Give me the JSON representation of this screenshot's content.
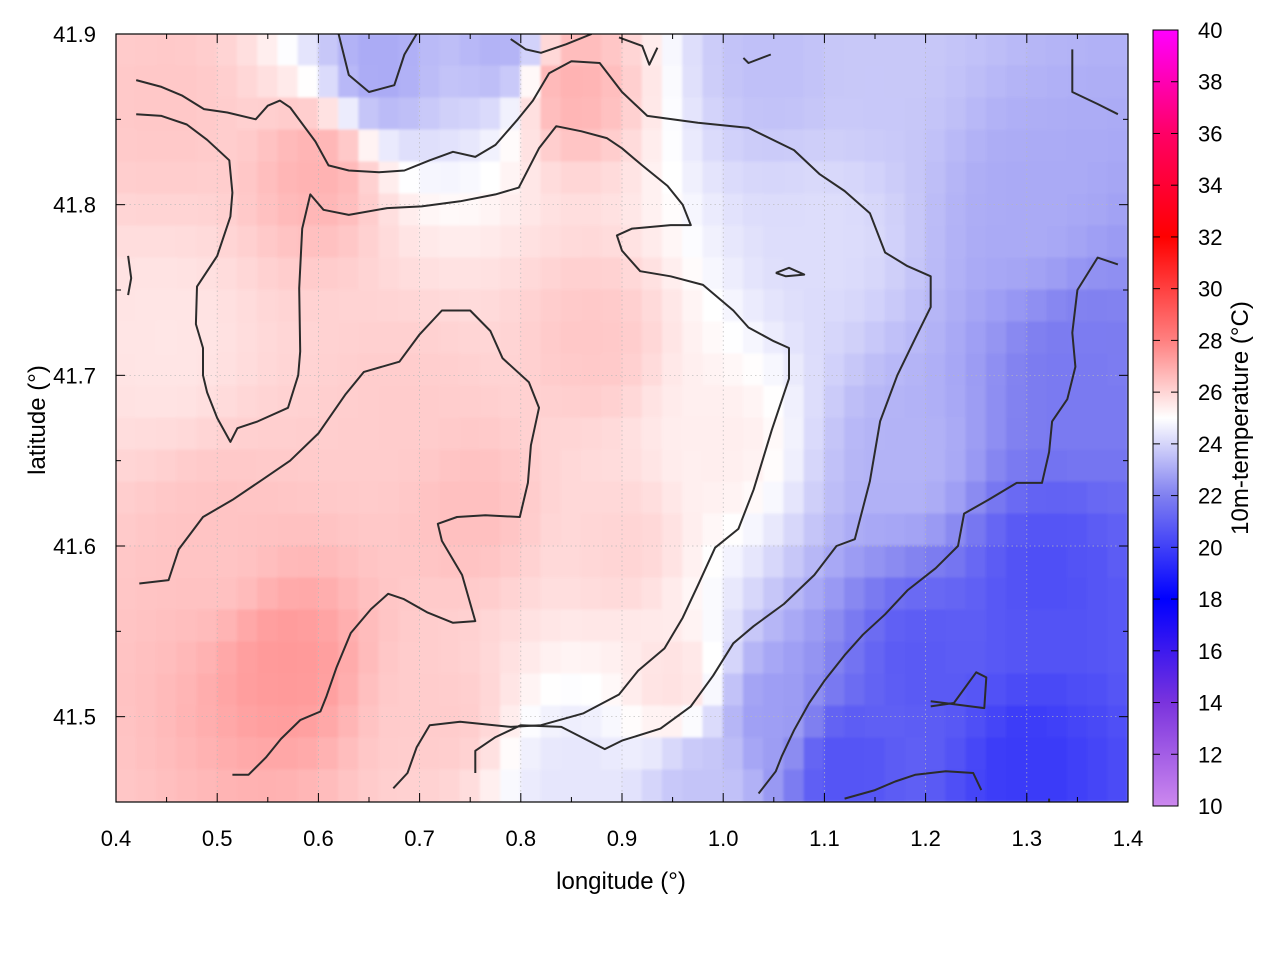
{
  "chart_data": {
    "type": "heatmap",
    "title": "",
    "xlabel": "longitude (°)",
    "ylabel": "latitude (°)",
    "xlim": [
      0.4,
      1.4
    ],
    "ylim": [
      41.45,
      41.9
    ],
    "x_ticks": [
      "0.4",
      "0.5",
      "0.6",
      "0.7",
      "0.8",
      "0.9",
      "1.0",
      "1.1",
      "1.2",
      "1.3",
      "1.4"
    ],
    "y_ticks": [
      "41.5",
      "41.6",
      "41.7",
      "41.8",
      "41.9"
    ],
    "grid": true,
    "colorbar": {
      "label": "10m-temperature (°C)",
      "range": [
        10,
        40
      ],
      "ticks": [
        "10",
        "12",
        "14",
        "16",
        "18",
        "20",
        "22",
        "24",
        "26",
        "28",
        "30",
        "32",
        "34",
        "36",
        "38",
        "40"
      ],
      "colors": [
        {
          "t": 10,
          "color": "#cc88ee"
        },
        {
          "t": 14,
          "color": "#7a33dd"
        },
        {
          "t": 18,
          "color": "#0000ff"
        },
        {
          "t": 22,
          "color": "#8080f0"
        },
        {
          "t": 25,
          "color": "#ffffff"
        },
        {
          "t": 28,
          "color": "#ff8080"
        },
        {
          "t": 32,
          "color": "#ff0000"
        },
        {
          "t": 36,
          "color": "#ff0066"
        },
        {
          "t": 40,
          "color": "#ff00ff"
        }
      ]
    },
    "field_points": [
      {
        "lon": 0.45,
        "lat": 41.86,
        "temp": 26.3
      },
      {
        "lon": 0.45,
        "lat": 41.72,
        "temp": 25.6
      },
      {
        "lon": 0.5,
        "lat": 41.6,
        "temp": 26.4
      },
      {
        "lon": 0.57,
        "lat": 41.53,
        "temp": 27.4
      },
      {
        "lon": 0.6,
        "lat": 41.82,
        "temp": 26.8
      },
      {
        "lon": 0.68,
        "lat": 41.68,
        "temp": 26.2
      },
      {
        "lon": 0.75,
        "lat": 41.62,
        "temp": 26.5
      },
      {
        "lon": 0.72,
        "lat": 41.5,
        "temp": 26.2
      },
      {
        "lon": 0.85,
        "lat": 41.87,
        "temp": 26.8
      },
      {
        "lon": 0.87,
        "lat": 41.72,
        "temp": 26.3
      },
      {
        "lon": 0.9,
        "lat": 41.6,
        "temp": 26.0
      },
      {
        "lon": 0.95,
        "lat": 41.52,
        "temp": 25.7
      },
      {
        "lon": 0.66,
        "lat": 41.88,
        "temp": 23.0
      },
      {
        "lon": 0.78,
        "lat": 41.895,
        "temp": 23.2
      },
      {
        "lon": 1.05,
        "lat": 41.88,
        "temp": 23.5
      },
      {
        "lon": 1.15,
        "lat": 41.88,
        "temp": 23.7
      },
      {
        "lon": 1.1,
        "lat": 41.78,
        "temp": 24.2
      },
      {
        "lon": 1.3,
        "lat": 41.8,
        "temp": 23.0
      },
      {
        "lon": 1.35,
        "lat": 41.7,
        "temp": 21.8
      },
      {
        "lon": 1.32,
        "lat": 41.58,
        "temp": 20.5
      },
      {
        "lon": 1.2,
        "lat": 41.53,
        "temp": 20.8
      },
      {
        "lon": 1.12,
        "lat": 41.47,
        "temp": 20.6
      },
      {
        "lon": 1.3,
        "lat": 41.47,
        "temp": 19.8
      },
      {
        "lon": 1.05,
        "lat": 41.5,
        "temp": 22.7
      },
      {
        "lon": 0.98,
        "lat": 41.46,
        "temp": 23.6
      },
      {
        "lon": 0.85,
        "lat": 41.46,
        "temp": 24.4
      },
      {
        "lon": 1.18,
        "lat": 41.65,
        "temp": 23.2
      },
      {
        "lon": 1.0,
        "lat": 41.66,
        "temp": 25.4
      }
    ],
    "contours": [
      [
        [
          0.42,
          41.873
        ],
        [
          0.445,
          41.869
        ],
        [
          0.465,
          41.864
        ],
        [
          0.487,
          41.856
        ],
        [
          0.51,
          41.854
        ],
        [
          0.538,
          41.85
        ],
        [
          0.55,
          41.858
        ],
        [
          0.562,
          41.861
        ],
        [
          0.572,
          41.857
        ],
        [
          0.597,
          41.837
        ],
        [
          0.61,
          41.823
        ],
        [
          0.63,
          41.82
        ],
        [
          0.66,
          41.819
        ],
        [
          0.685,
          41.82
        ],
        [
          0.71,
          41.826
        ],
        [
          0.733,
          41.831
        ],
        [
          0.755,
          41.828
        ],
        [
          0.775,
          41.835
        ],
        [
          0.797,
          41.85
        ],
        [
          0.812,
          41.861
        ],
        [
          0.828,
          41.877
        ],
        [
          0.85,
          41.884
        ],
        [
          0.878,
          41.883
        ],
        [
          0.9,
          41.866
        ],
        [
          0.925,
          41.852
        ],
        [
          0.975,
          41.848
        ],
        [
          1.025,
          41.845
        ],
        [
          1.07,
          41.832
        ],
        [
          1.095,
          41.818
        ],
        [
          1.12,
          41.808
        ],
        [
          1.145,
          41.795
        ],
        [
          1.16,
          41.772
        ],
        [
          1.182,
          41.764
        ],
        [
          1.205,
          41.758
        ],
        [
          1.205,
          41.74
        ],
        [
          1.19,
          41.722
        ],
        [
          1.172,
          41.7
        ],
        [
          1.155,
          41.673
        ],
        [
          1.145,
          41.638
        ],
        [
          1.13,
          41.604
        ],
        [
          1.112,
          41.6
        ],
        [
          1.09,
          41.583
        ],
        [
          1.06,
          41.566
        ],
        [
          1.03,
          41.553
        ],
        [
          1.01,
          41.543
        ],
        [
          0.99,
          41.524
        ],
        [
          0.968,
          41.506
        ],
        [
          0.938,
          41.493
        ],
        [
          0.9,
          41.486
        ],
        [
          0.883,
          41.481
        ],
        [
          0.84,
          41.494
        ],
        [
          0.8,
          41.495
        ],
        [
          0.775,
          41.488
        ],
        [
          0.755,
          41.48
        ],
        [
          0.755,
          41.467
        ]
      ],
      [
        [
          0.42,
          41.853
        ],
        [
          0.445,
          41.852
        ],
        [
          0.47,
          41.847
        ],
        [
          0.49,
          41.838
        ],
        [
          0.512,
          41.826
        ],
        [
          0.515,
          41.807
        ],
        [
          0.513,
          41.793
        ],
        [
          0.5,
          41.77
        ],
        [
          0.48,
          41.752
        ],
        [
          0.479,
          41.73
        ],
        [
          0.486,
          41.716
        ],
        [
          0.486,
          41.7
        ],
        [
          0.49,
          41.69
        ],
        [
          0.5,
          41.675
        ],
        [
          0.513,
          41.661
        ],
        [
          0.52,
          41.669
        ],
        [
          0.54,
          41.673
        ],
        [
          0.57,
          41.681
        ],
        [
          0.58,
          41.7
        ],
        [
          0.582,
          41.714
        ],
        [
          0.581,
          41.751
        ],
        [
          0.584,
          41.786
        ],
        [
          0.592,
          41.806
        ],
        [
          0.605,
          41.797
        ],
        [
          0.63,
          41.794
        ],
        [
          0.668,
          41.798
        ],
        [
          0.702,
          41.799
        ],
        [
          0.74,
          41.802
        ],
        [
          0.775,
          41.806
        ],
        [
          0.798,
          41.81
        ],
        [
          0.818,
          41.833
        ],
        [
          0.835,
          41.846
        ],
        [
          0.86,
          41.843
        ],
        [
          0.885,
          41.839
        ],
        [
          0.9,
          41.833
        ],
        [
          0.92,
          41.823
        ],
        [
          0.945,
          41.811
        ],
        [
          0.96,
          41.8
        ],
        [
          0.968,
          41.788
        ],
        [
          0.948,
          41.788
        ],
        [
          0.91,
          41.786
        ],
        [
          0.895,
          41.782
        ],
        [
          0.9,
          41.773
        ],
        [
          0.918,
          41.761
        ],
        [
          0.948,
          41.758
        ],
        [
          0.98,
          41.753
        ],
        [
          1.01,
          41.738
        ],
        [
          1.025,
          41.728
        ],
        [
          1.05,
          41.72
        ],
        [
          1.065,
          41.716
        ],
        [
          1.065,
          41.698
        ],
        [
          1.048,
          41.668
        ],
        [
          1.03,
          41.633
        ],
        [
          1.015,
          41.61
        ],
        [
          0.992,
          41.599
        ],
        [
          0.975,
          41.577
        ],
        [
          0.96,
          41.558
        ],
        [
          0.942,
          41.54
        ],
        [
          0.916,
          41.527
        ],
        [
          0.897,
          41.513
        ],
        [
          0.862,
          41.502
        ],
        [
          0.82,
          41.495
        ],
        [
          0.79,
          41.494
        ],
        [
          0.74,
          41.497
        ],
        [
          0.71,
          41.495
        ],
        [
          0.697,
          41.482
        ],
        [
          0.688,
          41.467
        ],
        [
          0.674,
          41.458
        ]
      ],
      [
        [
          0.423,
          41.578
        ],
        [
          0.452,
          41.58
        ],
        [
          0.462,
          41.598
        ],
        [
          0.486,
          41.617
        ],
        [
          0.515,
          41.627
        ],
        [
          0.545,
          41.639
        ],
        [
          0.572,
          41.65
        ],
        [
          0.6,
          41.666
        ],
        [
          0.627,
          41.689
        ],
        [
          0.645,
          41.702
        ],
        [
          0.68,
          41.708
        ],
        [
          0.7,
          41.724
        ],
        [
          0.722,
          41.738
        ],
        [
          0.75,
          41.738
        ],
        [
          0.77,
          41.726
        ],
        [
          0.782,
          41.71
        ],
        [
          0.808,
          41.696
        ],
        [
          0.818,
          41.681
        ],
        [
          0.81,
          41.659
        ],
        [
          0.807,
          41.637
        ],
        [
          0.799,
          41.617
        ],
        [
          0.765,
          41.618
        ],
        [
          0.737,
          41.617
        ],
        [
          0.718,
          41.613
        ],
        [
          0.722,
          41.603
        ],
        [
          0.742,
          41.583
        ],
        [
          0.755,
          41.556
        ],
        [
          0.733,
          41.555
        ],
        [
          0.708,
          41.561
        ],
        [
          0.684,
          41.569
        ],
        [
          0.669,
          41.572
        ],
        [
          0.652,
          41.563
        ],
        [
          0.632,
          41.549
        ],
        [
          0.618,
          41.529
        ],
        [
          0.608,
          41.512
        ],
        [
          0.602,
          41.503
        ],
        [
          0.582,
          41.498
        ],
        [
          0.563,
          41.487
        ],
        [
          0.548,
          41.476
        ],
        [
          0.531,
          41.466
        ],
        [
          0.515,
          41.466
        ]
      ],
      [
        [
          0.62,
          41.9
        ],
        [
          0.63,
          41.876
        ],
        [
          0.65,
          41.866
        ],
        [
          0.675,
          41.87
        ],
        [
          0.685,
          41.888
        ],
        [
          0.697,
          41.9
        ]
      ],
      [
        [
          0.79,
          41.897
        ],
        [
          0.805,
          41.891
        ],
        [
          0.82,
          41.889
        ],
        [
          0.845,
          41.894
        ],
        [
          0.87,
          41.9
        ]
      ],
      [
        [
          0.897,
          41.898
        ],
        [
          0.92,
          41.893
        ],
        [
          0.927,
          41.882
        ],
        [
          0.935,
          41.892
        ]
      ],
      [
        [
          1.02,
          41.886
        ],
        [
          1.025,
          41.883
        ],
        [
          1.047,
          41.888
        ]
      ],
      [
        [
          1.052,
          41.76
        ],
        [
          1.065,
          41.763
        ],
        [
          1.08,
          41.759
        ],
        [
          1.062,
          41.758
        ],
        [
          1.052,
          41.76
        ]
      ],
      [
        [
          1.345,
          41.891
        ],
        [
          1.345,
          41.866
        ],
        [
          1.37,
          41.859
        ],
        [
          1.39,
          41.853
        ]
      ],
      [
        [
          0.412,
          41.77
        ],
        [
          0.415,
          41.757
        ],
        [
          0.412,
          41.747
        ]
      ],
      [
        [
          1.39,
          41.765
        ],
        [
          1.37,
          41.769
        ],
        [
          1.35,
          41.75
        ],
        [
          1.345,
          41.725
        ],
        [
          1.348,
          41.705
        ],
        [
          1.34,
          41.686
        ],
        [
          1.325,
          41.673
        ],
        [
          1.322,
          41.655
        ],
        [
          1.315,
          41.637
        ],
        [
          1.29,
          41.637
        ],
        [
          1.262,
          41.627
        ],
        [
          1.238,
          41.619
        ],
        [
          1.232,
          41.6
        ],
        [
          1.21,
          41.587
        ],
        [
          1.182,
          41.574
        ],
        [
          1.16,
          41.56
        ],
        [
          1.138,
          41.548
        ],
        [
          1.12,
          41.536
        ],
        [
          1.1,
          41.521
        ],
        [
          1.085,
          41.508
        ],
        [
          1.07,
          41.492
        ],
        [
          1.058,
          41.477
        ],
        [
          1.052,
          41.468
        ],
        [
          1.035,
          41.455
        ]
      ],
      [
        [
          1.205,
          41.506
        ],
        [
          1.228,
          41.508
        ],
        [
          1.25,
          41.526
        ],
        [
          1.26,
          41.523
        ],
        [
          1.258,
          41.505
        ],
        [
          1.205,
          41.509
        ]
      ],
      [
        [
          1.12,
          41.452
        ],
        [
          1.15,
          41.457
        ],
        [
          1.17,
          41.462
        ],
        [
          1.19,
          41.466
        ],
        [
          1.22,
          41.468
        ],
        [
          1.247,
          41.467
        ],
        [
          1.255,
          41.457
        ]
      ],
      [
        [
          1.322,
          41.452
        ],
        [
          1.322,
          41.448
        ]
      ]
    ]
  }
}
